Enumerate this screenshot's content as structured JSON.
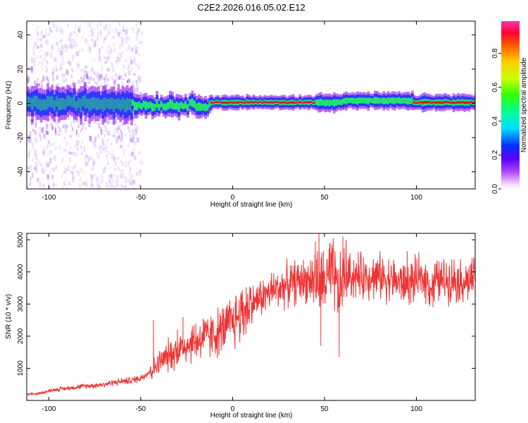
{
  "title": "C2E2.2026.016.05.02.E12",
  "colors": {
    "snr_line": "#ee3333",
    "frame": "#000000",
    "band_core": "#dd1111",
    "band_mid": "#22ee66",
    "band_outer": "#2233ff",
    "band_edge": "#8800ee",
    "speckle": "#b98cf0"
  },
  "chart_data": [
    {
      "type": "heatmap",
      "name": "spectrogram",
      "xlabel": "Height of straight line (km)",
      "ylabel": "Frequency (Hz)",
      "xlim": [
        -112,
        132
      ],
      "ylim": [
        -50,
        48
      ],
      "xticks": [
        -100,
        -50,
        0,
        50,
        100
      ],
      "yticks": [
        -40,
        -20,
        0,
        20,
        40
      ],
      "grid": false,
      "colorbar": {
        "label": "Normalized spectral amplitude",
        "range": [
          0.0,
          0.99
        ],
        "ticks": [
          "0.0",
          "0.2",
          "0.4",
          "0.6",
          "0.8"
        ],
        "tick_values": [
          0.0,
          0.2,
          0.4,
          0.6,
          0.8
        ]
      },
      "band": {
        "description": "carrier line near 0 Hz",
        "segments": [
          {
            "x_from": -112,
            "x_to": -55,
            "center_hz": 0,
            "half_width_hz": 6,
            "peak_amplitude": 0.4
          },
          {
            "x_from": -55,
            "x_to": -12,
            "center_hz": -1,
            "half_width_hz": 4,
            "peak_amplitude": 0.5
          },
          {
            "x_from": -12,
            "x_to": 45,
            "center_hz": 0.5,
            "half_width_hz": 2.5,
            "peak_amplitude": 0.95
          },
          {
            "x_from": 45,
            "x_to": 60,
            "center_hz": 0.5,
            "half_width_hz": 3.5,
            "peak_amplitude": 0.7
          },
          {
            "x_from": 60,
            "x_to": 98,
            "center_hz": 1.5,
            "half_width_hz": 3,
            "peak_amplitude": 0.6
          },
          {
            "x_from": 98,
            "x_to": 132,
            "center_hz": 0.5,
            "half_width_hz": 3,
            "peak_amplitude": 0.9
          }
        ],
        "noise_region_x": [
          -112,
          -50
        ]
      }
    },
    {
      "type": "line",
      "name": "snr",
      "xlabel": "Height of straight line (km)",
      "ylabel": "SNR (10 * v/v)",
      "xlim": [
        -112,
        132
      ],
      "ylim": [
        0,
        5200
      ],
      "xticks": [
        -100,
        -50,
        0,
        50,
        100
      ],
      "yticks": [
        1000,
        2000,
        3000,
        4000,
        5000
      ],
      "grid": false,
      "series": [
        {
          "name": "SNR",
          "x": [
            -112,
            -105,
            -100,
            -95,
            -90,
            -85,
            -80,
            -75,
            -70,
            -65,
            -60,
            -55,
            -50,
            -45,
            -42,
            -38,
            -35,
            -30,
            -25,
            -20,
            -15,
            -10,
            -5,
            0,
            5,
            10,
            15,
            20,
            25,
            30,
            35,
            40,
            45,
            48,
            50,
            55,
            58,
            60,
            65,
            70,
            75,
            80,
            85,
            90,
            95,
            100,
            105,
            108,
            110,
            115,
            120,
            125,
            132
          ],
          "y": [
            180,
            220,
            300,
            350,
            380,
            420,
            450,
            470,
            500,
            560,
            600,
            620,
            700,
            900,
            1050,
            1250,
            1400,
            1550,
            1750,
            1850,
            1950,
            2050,
            2200,
            2450,
            2750,
            3000,
            3200,
            3350,
            3500,
            3600,
            3700,
            3750,
            3800,
            3500,
            3750,
            3850,
            3300,
            3850,
            3900,
            3850,
            3900,
            3850,
            3800,
            3700,
            3600,
            3750,
            3800,
            3500,
            3700,
            3750,
            3800,
            3700,
            3750
          ],
          "spikes": [
            {
              "x": -43,
              "y": 2500
            },
            {
              "x": -30,
              "y": 2200
            },
            {
              "x": -27,
              "y": 2600
            },
            {
              "x": -20,
              "y": 2400
            },
            {
              "x": -16,
              "y": 2550
            },
            {
              "x": -5,
              "y": 2700
            },
            {
              "x": 45,
              "y": 4950
            },
            {
              "x": 47,
              "y": 5200
            },
            {
              "x": 48,
              "y": 1700
            },
            {
              "x": 53,
              "y": 4900
            },
            {
              "x": 58,
              "y": 1350
            },
            {
              "x": 60,
              "y": 5100
            },
            {
              "x": 95,
              "y": 4650
            },
            {
              "x": 109,
              "y": 2900
            },
            {
              "x": 110,
              "y": 4250
            }
          ]
        }
      ]
    }
  ]
}
